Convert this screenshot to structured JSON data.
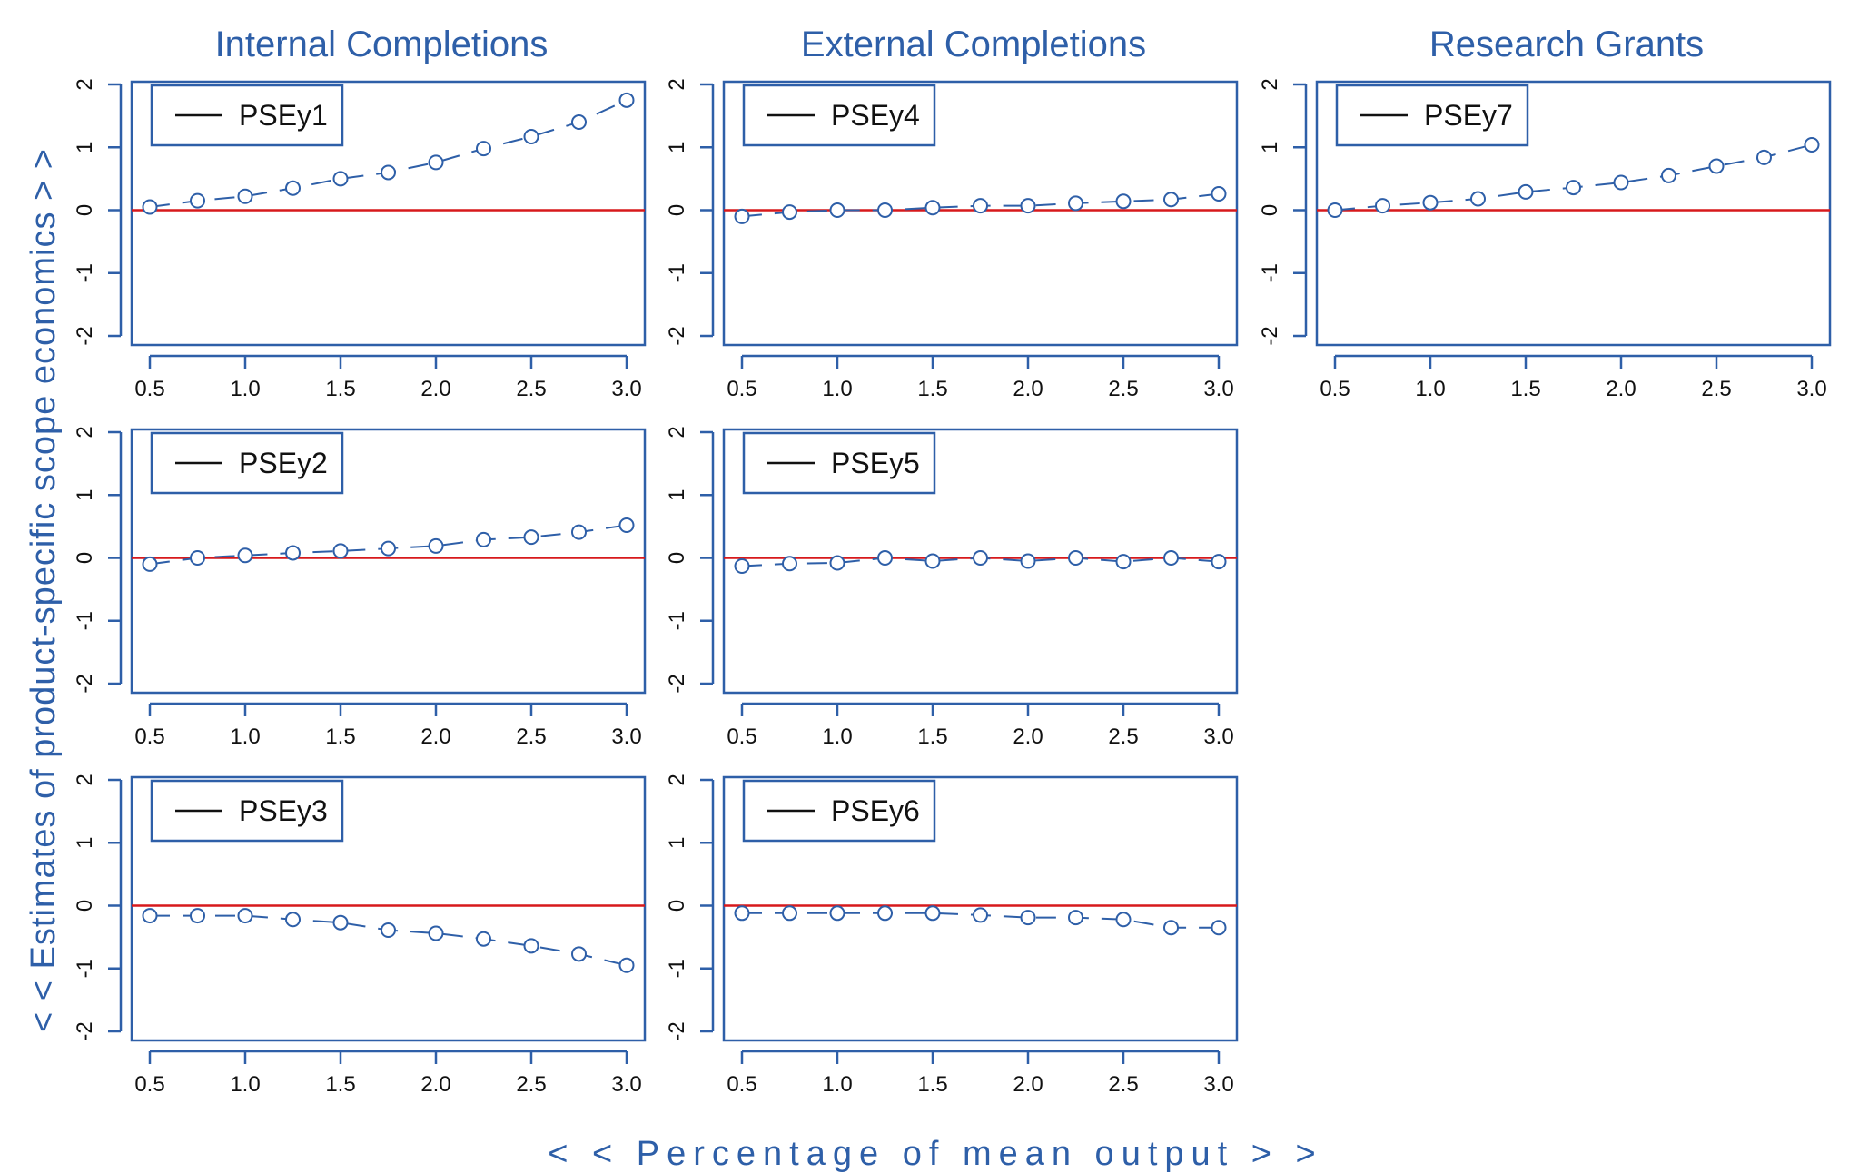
{
  "figure": {
    "column_titles": [
      "Internal Completions",
      "External Completions",
      "Research Grants"
    ],
    "y_axis_title": "< < Estimates of product-specific scope economics > >",
    "x_axis_title": "< < Percentage of mean output > >",
    "colors": {
      "frame": "#2e5fa8",
      "series": "#2e5fa8",
      "zero_line": "#d7191c",
      "text": "#111111"
    }
  },
  "chart_data": [
    {
      "type": "line",
      "panel": "r0c0",
      "legend": "PSEy1",
      "x": [
        0.5,
        0.75,
        1.0,
        1.25,
        1.5,
        1.75,
        2.0,
        2.25,
        2.5,
        2.75,
        3.0
      ],
      "values": [
        0.05,
        0.15,
        0.22,
        0.35,
        0.5,
        0.6,
        0.76,
        0.98,
        1.17,
        1.4,
        1.75
      ],
      "xticks": [
        "0.5",
        "1.0",
        "1.5",
        "2.0",
        "2.5",
        "3.0"
      ],
      "yticks": [
        "-2",
        "-1",
        "0",
        "1",
        "2"
      ],
      "xlim": [
        0.5,
        3.0
      ],
      "ylim": [
        -2,
        2
      ],
      "reference_line": 0
    },
    {
      "type": "line",
      "panel": "r0c1",
      "legend": "PSEy4",
      "x": [
        0.5,
        0.75,
        1.0,
        1.25,
        1.5,
        1.75,
        2.0,
        2.25,
        2.5,
        2.75,
        3.0
      ],
      "values": [
        -0.1,
        -0.03,
        0.0,
        0.0,
        0.04,
        0.07,
        0.07,
        0.11,
        0.14,
        0.17,
        0.26
      ],
      "xticks": [
        "0.5",
        "1.0",
        "1.5",
        "2.0",
        "2.5",
        "3.0"
      ],
      "yticks": [
        "-2",
        "-1",
        "0",
        "1",
        "2"
      ],
      "xlim": [
        0.5,
        3.0
      ],
      "ylim": [
        -2,
        2
      ],
      "reference_line": 0
    },
    {
      "type": "line",
      "panel": "r0c2",
      "legend": "PSEy7",
      "x": [
        0.5,
        0.75,
        1.0,
        1.25,
        1.5,
        1.75,
        2.0,
        2.25,
        2.5,
        2.75,
        3.0
      ],
      "values": [
        0.0,
        0.07,
        0.12,
        0.18,
        0.29,
        0.36,
        0.44,
        0.55,
        0.7,
        0.84,
        1.04
      ],
      "xticks": [
        "0.5",
        "1.0",
        "1.5",
        "2.0",
        "2.5",
        "3.0"
      ],
      "yticks": [
        "-2",
        "-1",
        "0",
        "1",
        "2"
      ],
      "xlim": [
        0.5,
        3.0
      ],
      "ylim": [
        -2,
        2
      ],
      "reference_line": 0
    },
    {
      "type": "line",
      "panel": "r1c0",
      "legend": "PSEy2",
      "x": [
        0.5,
        0.75,
        1.0,
        1.25,
        1.5,
        1.75,
        2.0,
        2.25,
        2.5,
        2.75,
        3.0
      ],
      "values": [
        -0.1,
        0.0,
        0.04,
        0.08,
        0.11,
        0.15,
        0.19,
        0.29,
        0.33,
        0.41,
        0.52
      ],
      "xticks": [
        "0.5",
        "1.0",
        "1.5",
        "2.0",
        "2.5",
        "3.0"
      ],
      "yticks": [
        "-2",
        "-1",
        "0",
        "1",
        "2"
      ],
      "xlim": [
        0.5,
        3.0
      ],
      "ylim": [
        -2,
        2
      ],
      "reference_line": 0
    },
    {
      "type": "line",
      "panel": "r1c1",
      "legend": "PSEy5",
      "x": [
        0.5,
        0.75,
        1.0,
        1.25,
        1.5,
        1.75,
        2.0,
        2.25,
        2.5,
        2.75,
        3.0
      ],
      "values": [
        -0.13,
        -0.09,
        -0.08,
        0.0,
        -0.05,
        0.0,
        -0.05,
        0.0,
        -0.06,
        0.0,
        -0.06
      ],
      "xticks": [
        "0.5",
        "1.0",
        "1.5",
        "2.0",
        "2.5",
        "3.0"
      ],
      "yticks": [
        "-2",
        "-1",
        "0",
        "1",
        "2"
      ],
      "xlim": [
        0.5,
        3.0
      ],
      "ylim": [
        -2,
        2
      ],
      "reference_line": 0
    },
    {
      "type": "line",
      "panel": "r2c0",
      "legend": "PSEy3",
      "x": [
        0.5,
        0.75,
        1.0,
        1.25,
        1.5,
        1.75,
        2.0,
        2.25,
        2.5,
        2.75,
        3.0
      ],
      "values": [
        -0.16,
        -0.16,
        -0.16,
        -0.22,
        -0.27,
        -0.39,
        -0.44,
        -0.53,
        -0.64,
        -0.77,
        -0.95
      ],
      "xticks": [
        "0.5",
        "1.0",
        "1.5",
        "2.0",
        "2.5",
        "3.0"
      ],
      "yticks": [
        "-2",
        "-1",
        "0",
        "1",
        "2"
      ],
      "xlim": [
        0.5,
        3.0
      ],
      "ylim": [
        -2,
        2
      ],
      "reference_line": 0
    },
    {
      "type": "line",
      "panel": "r2c1",
      "legend": "PSEy6",
      "x": [
        0.5,
        0.75,
        1.0,
        1.25,
        1.5,
        1.75,
        2.0,
        2.25,
        2.5,
        2.75,
        3.0
      ],
      "values": [
        -0.12,
        -0.12,
        -0.12,
        -0.12,
        -0.12,
        -0.15,
        -0.19,
        -0.19,
        -0.22,
        -0.35,
        -0.35
      ],
      "xticks": [
        "0.5",
        "1.0",
        "1.5",
        "2.0",
        "2.5",
        "3.0"
      ],
      "yticks": [
        "-2",
        "-1",
        "0",
        "1",
        "2"
      ],
      "xlim": [
        0.5,
        3.0
      ],
      "ylim": [
        -2,
        2
      ],
      "reference_line": 0
    }
  ]
}
